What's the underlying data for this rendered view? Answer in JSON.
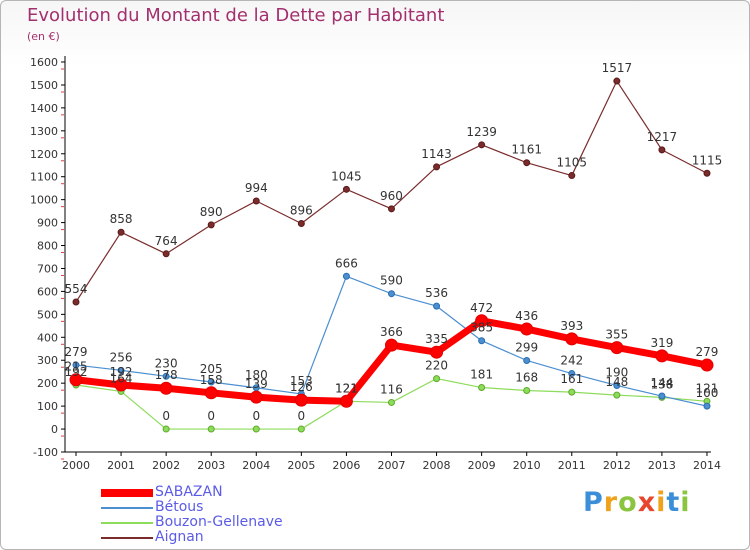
{
  "chart_data": {
    "type": "line",
    "title": "Evolution du Montant de la Dette par Habitant",
    "subtitle": "(en €)",
    "x": [
      "2000",
      "2001",
      "2002",
      "2003",
      "2004",
      "2005",
      "2006",
      "2007",
      "2008",
      "2009",
      "2010",
      "2011",
      "2012",
      "2013",
      "2014"
    ],
    "ylim": [
      -100,
      1600
    ],
    "yticks": [
      -100,
      0,
      100,
      200,
      300,
      400,
      500,
      600,
      700,
      800,
      900,
      1000,
      1100,
      1200,
      1300,
      1400,
      1500,
      1600
    ],
    "grid": false,
    "legend_position": "bottom-left",
    "series": [
      {
        "name": "SABAZAN",
        "color": "#ff0000",
        "values": [
          215,
          192,
          178,
          158,
          139,
          126,
          121,
          366,
          335,
          472,
          436,
          393,
          355,
          319,
          279
        ]
      },
      {
        "name": "Bétous",
        "color": "#4c8fd0",
        "values": [
          279,
          256,
          230,
          205,
          180,
          153,
          666,
          590,
          536,
          385,
          299,
          242,
          190,
          144,
          100
        ]
      },
      {
        "name": "Bouzon-Gellenave",
        "color": "#8ddc5a",
        "values": [
          192,
          164,
          0,
          0,
          0,
          0,
          121,
          116,
          220,
          181,
          168,
          161,
          148,
          138,
          121
        ]
      },
      {
        "name": "Aignan",
        "color": "#7a2c2c",
        "values": [
          554,
          858,
          764,
          890,
          994,
          896,
          1045,
          960,
          1143,
          1239,
          1161,
          1105,
          1517,
          1217,
          1115
        ]
      }
    ]
  },
  "branding": {
    "logo_letters": [
      "P",
      "r",
      "o",
      "x",
      "i",
      "t",
      "i"
    ],
    "logo_colors": [
      "#3a8fd8",
      "#f0a21a",
      "#8bc43f",
      "#e7462c",
      "#f0a21a",
      "#3a8fd8",
      "#8bc43f"
    ]
  }
}
